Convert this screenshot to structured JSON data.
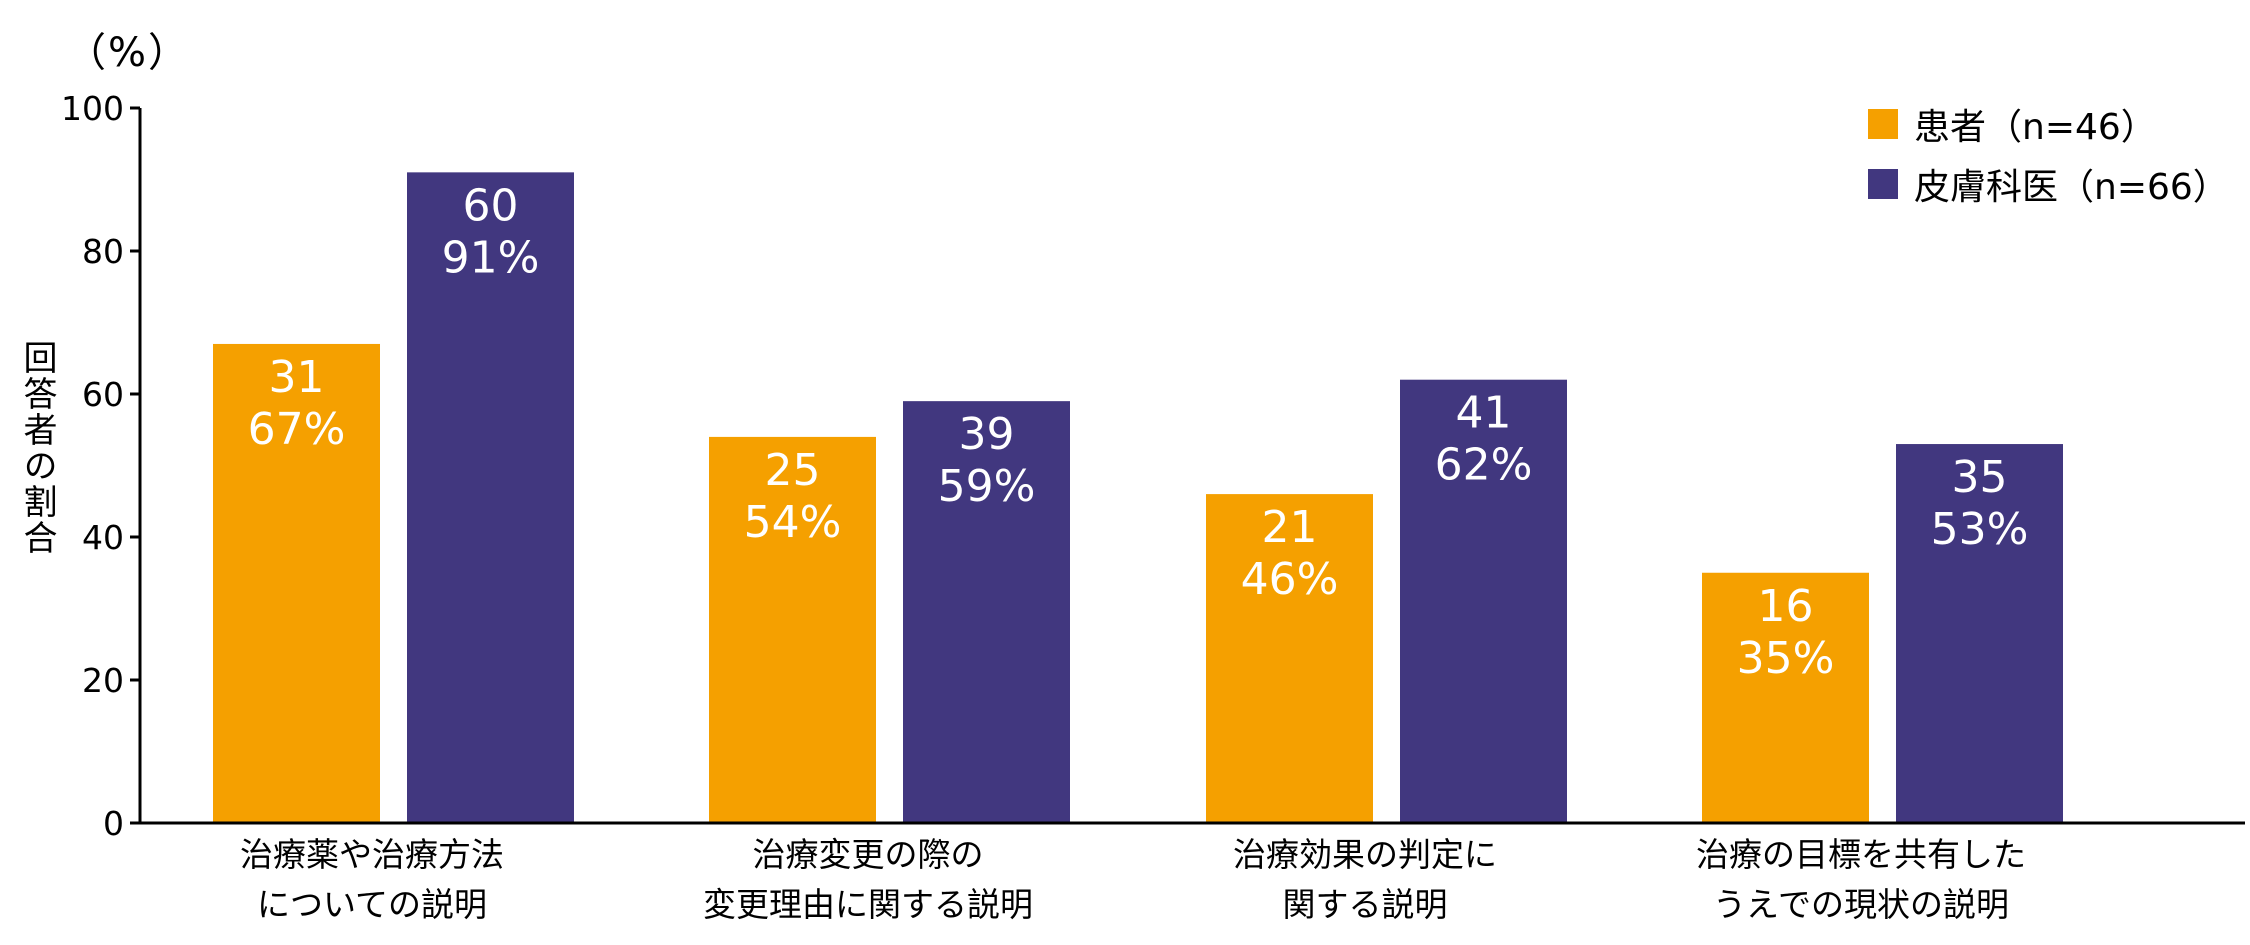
{
  "chart_data": {
    "type": "bar",
    "unit_label": "（%）",
    "ylabel": "回答者の割合",
    "ylim": [
      0,
      100
    ],
    "yticks": [
      "0",
      "20",
      "40",
      "60",
      "80",
      "100"
    ],
    "ytick_values": [
      0,
      20,
      40,
      60,
      80,
      100
    ],
    "categories": [
      "治療薬や治療方法\nについての説明",
      "治療変更の際の\n変更理由に関する説明",
      "治療効果の判定に\n関する説明",
      "治療の目標を共有した\nうえでの現状の説明"
    ],
    "series": [
      {
        "name": "患者（n=46）",
        "color": "#f5a000",
        "values": [
          67,
          54,
          46,
          35
        ],
        "counts": [
          "31",
          "25",
          "21",
          "16"
        ],
        "labels": [
          "67%",
          "54%",
          "46%",
          "35%"
        ]
      },
      {
        "name": "皮膚科医（n=66）",
        "color": "#41377f",
        "values": [
          91,
          59,
          62,
          53
        ],
        "counts": [
          "60",
          "39",
          "41",
          "35"
        ],
        "labels": [
          "91%",
          "59%",
          "62%",
          "53%"
        ]
      }
    ],
    "legend_position": "top-right",
    "grid": false
  }
}
